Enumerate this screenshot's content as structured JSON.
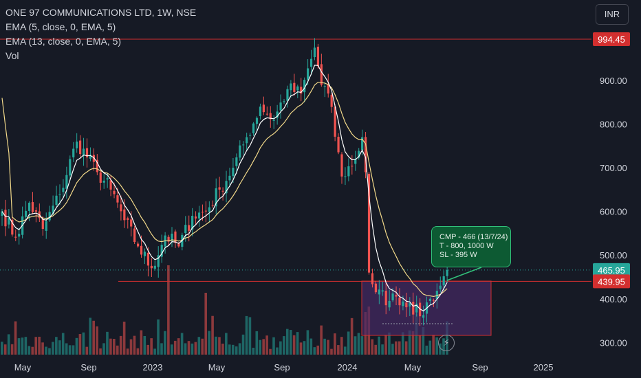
{
  "legend": {
    "title": "ONE 97 COMMUNICATIONS LTD, 1W, NSE",
    "ema1": "EMA (5, close, 0, EMA, 5)",
    "ema2": "EMA (13, close, 0, EMA, 5)",
    "vol": "Vol"
  },
  "currency": "INR",
  "callout": {
    "line1": "CMP - 466 (13/7/24)",
    "line2": "T - 800, 1000 W",
    "line3": "SL - 395 W"
  },
  "icons": {
    "replay": "lightning-bolt-icon"
  },
  "colors": {
    "up": "#26a69a",
    "down": "#ef5350",
    "ema_fast": "#ffffff",
    "ema_slow": "#f2d98a",
    "background": "#161a25",
    "support_line": "#d32f2f",
    "zone_fill": "#4a2a68",
    "callout_bg": "#0d5a33"
  },
  "chart_data": {
    "type": "candlestick",
    "y_axis": {
      "ticks": [
        300,
        400,
        500,
        600,
        700,
        800,
        900
      ],
      "tick_labels": [
        "300.00",
        "400.00",
        "500.00",
        "600.00",
        "700.00",
        "800.00",
        "900.00"
      ],
      "range": [
        270,
        1070
      ]
    },
    "x_axis": {
      "labels": [
        "May",
        "Sep",
        "2023",
        "May",
        "Sep",
        "2024",
        "May",
        "Sep",
        "2025"
      ]
    },
    "price_labels": [
      {
        "value": 994.45,
        "text": "994.45",
        "color": "#d32f2f"
      },
      {
        "value": 465.95,
        "text": "465.95",
        "color": "#26a69a"
      },
      {
        "value": 439.95,
        "text": "439.95",
        "color": "#d32f2f"
      }
    ],
    "horizontal_lines": [
      994.45,
      439.95
    ],
    "annotations": [
      "CMP - 466 (13/7/24)",
      "T - 800, 1000 W",
      "SL - 395 W"
    ],
    "keypoints_close": [
      [
        0,
        600
      ],
      [
        4,
        540
      ],
      [
        8,
        620
      ],
      [
        12,
        560
      ],
      [
        17,
        640
      ],
      [
        22,
        760
      ],
      [
        28,
        690
      ],
      [
        32,
        650
      ],
      [
        36,
        580
      ],
      [
        40,
        520
      ],
      [
        44,
        470
      ],
      [
        48,
        545
      ],
      [
        52,
        520
      ],
      [
        56,
        590
      ],
      [
        60,
        600
      ],
      [
        64,
        650
      ],
      [
        68,
        700
      ],
      [
        72,
        770
      ],
      [
        76,
        840
      ],
      [
        80,
        810
      ],
      [
        84,
        880
      ],
      [
        88,
        870
      ],
      [
        92,
        975
      ],
      [
        94,
        890
      ],
      [
        96,
        870
      ],
      [
        100,
        680
      ],
      [
        104,
        720
      ],
      [
        106,
        770
      ],
      [
        107,
        690
      ],
      [
        108,
        460
      ],
      [
        110,
        415
      ],
      [
        114,
        395
      ],
      [
        116,
        405
      ],
      [
        120,
        390
      ],
      [
        123,
        360
      ],
      [
        126,
        400
      ],
      [
        129,
        430
      ],
      [
        131,
        466
      ]
    ],
    "grid": false,
    "legend_position": "top-left",
    "series": [
      {
        "name": "EMA (5, close, 0, EMA, 5)"
      },
      {
        "name": "EMA (13, close, 0, EMA, 5)"
      },
      {
        "name": "Vol"
      }
    ]
  }
}
